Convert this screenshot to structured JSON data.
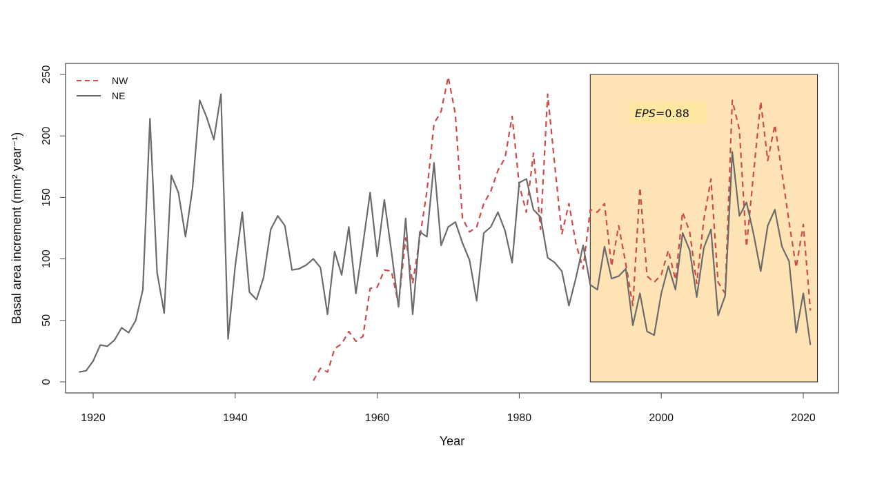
{
  "chart_data": {
    "type": "line",
    "title": "",
    "xlabel": "Year",
    "ylabel": "Basal area increment (mm² year⁻¹)",
    "xlim": [
      1914,
      2025
    ],
    "ylim": [
      -8,
      259
    ],
    "xticks": [
      1920,
      1940,
      1960,
      1980,
      2000,
      2020
    ],
    "yticks": [
      0,
      50,
      100,
      150,
      200,
      250
    ],
    "grid": false,
    "legend_position": "top-left",
    "colors": {
      "NW": "#cd4b4b",
      "NE": "#6b6b6b",
      "highlight": "#fee3b5",
      "annotation_bg": "#fee7a0"
    },
    "highlight_region": {
      "x": [
        1990,
        2022
      ],
      "y": [
        0,
        250
      ]
    },
    "annotation": {
      "label_italic": "EPS",
      "label_rest": "=0.88"
    },
    "series": [
      {
        "name": "NW",
        "style": "dashed",
        "x": [
          1951,
          1952,
          1953,
          1954,
          1955,
          1956,
          1957,
          1958,
          1959,
          1960,
          1961,
          1962,
          1963,
          1964,
          1965,
          1966,
          1967,
          1968,
          1969,
          1970,
          1971,
          1972,
          1973,
          1974,
          1975,
          1976,
          1977,
          1978,
          1979,
          1980,
          1981,
          1982,
          1983,
          1984,
          1985,
          1986,
          1987,
          1988,
          1989,
          1990,
          1991,
          1992,
          1993,
          1994,
          1995,
          1996,
          1997,
          1998,
          1999,
          2000,
          2001,
          2002,
          2003,
          2004,
          2005,
          2006,
          2007,
          2008,
          2009,
          2010,
          2011,
          2012,
          2013,
          2014,
          2015,
          2016,
          2017,
          2018,
          2019,
          2020,
          2021
        ],
        "values": [
          1,
          11,
          8,
          27,
          31,
          41,
          33,
          37,
          76,
          77,
          91,
          90,
          63,
          117,
          80,
          117,
          155,
          210,
          220,
          248,
          218,
          133,
          122,
          126,
          145,
          155,
          172,
          182,
          216,
          160,
          138,
          186,
          124,
          234,
          176,
          120,
          145,
          112,
          92,
          140,
          138,
          145,
          94,
          127,
          96,
          62,
          158,
          86,
          81,
          87,
          107,
          83,
          138,
          122,
          80,
          132,
          165,
          81,
          72,
          229,
          205,
          110,
          170,
          228,
          180,
          209,
          170,
          130,
          93,
          128,
          58
        ]
      },
      {
        "name": "NE",
        "style": "solid",
        "x": [
          1918,
          1919,
          1920,
          1921,
          1922,
          1923,
          1924,
          1925,
          1926,
          1927,
          1928,
          1929,
          1930,
          1931,
          1932,
          1933,
          1934,
          1935,
          1936,
          1937,
          1938,
          1939,
          1940,
          1941,
          1942,
          1943,
          1944,
          1945,
          1946,
          1947,
          1948,
          1949,
          1950,
          1951,
          1952,
          1953,
          1954,
          1955,
          1956,
          1957,
          1958,
          1959,
          1960,
          1961,
          1962,
          1963,
          1964,
          1965,
          1966,
          1967,
          1968,
          1969,
          1970,
          1971,
          1972,
          1973,
          1974,
          1975,
          1976,
          1977,
          1978,
          1979,
          1980,
          1981,
          1982,
          1983,
          1984,
          1985,
          1986,
          1987,
          1988,
          1989,
          1990,
          1991,
          1992,
          1993,
          1994,
          1995,
          1996,
          1997,
          1998,
          1999,
          2000,
          2001,
          2002,
          2003,
          2004,
          2005,
          2006,
          2007,
          2008,
          2009,
          2010,
          2011,
          2012,
          2013,
          2014,
          2015,
          2016,
          2017,
          2018,
          2019,
          2020,
          2021
        ],
        "values": [
          8,
          9,
          17,
          30,
          29,
          34,
          44,
          40,
          50,
          75,
          214,
          89,
          56,
          168,
          154,
          118,
          158,
          229,
          215,
          197,
          234,
          35,
          94,
          138,
          73,
          67,
          85,
          124,
          135,
          127,
          91,
          92,
          95,
          100,
          93,
          55,
          106,
          87,
          126,
          72,
          112,
          154,
          102,
          148,
          106,
          61,
          133,
          55,
          122,
          118,
          178,
          111,
          126,
          130,
          113,
          99,
          66,
          121,
          126,
          138,
          123,
          97,
          162,
          165,
          140,
          134,
          101,
          97,
          90,
          62,
          85,
          111,
          79,
          75,
          110,
          84,
          86,
          92,
          46,
          72,
          41,
          38,
          72,
          94,
          75,
          121,
          107,
          69,
          109,
          124,
          54,
          70,
          187,
          135,
          146,
          120,
          90,
          127,
          140,
          110,
          98,
          40,
          72,
          30
        ]
      }
    ]
  }
}
